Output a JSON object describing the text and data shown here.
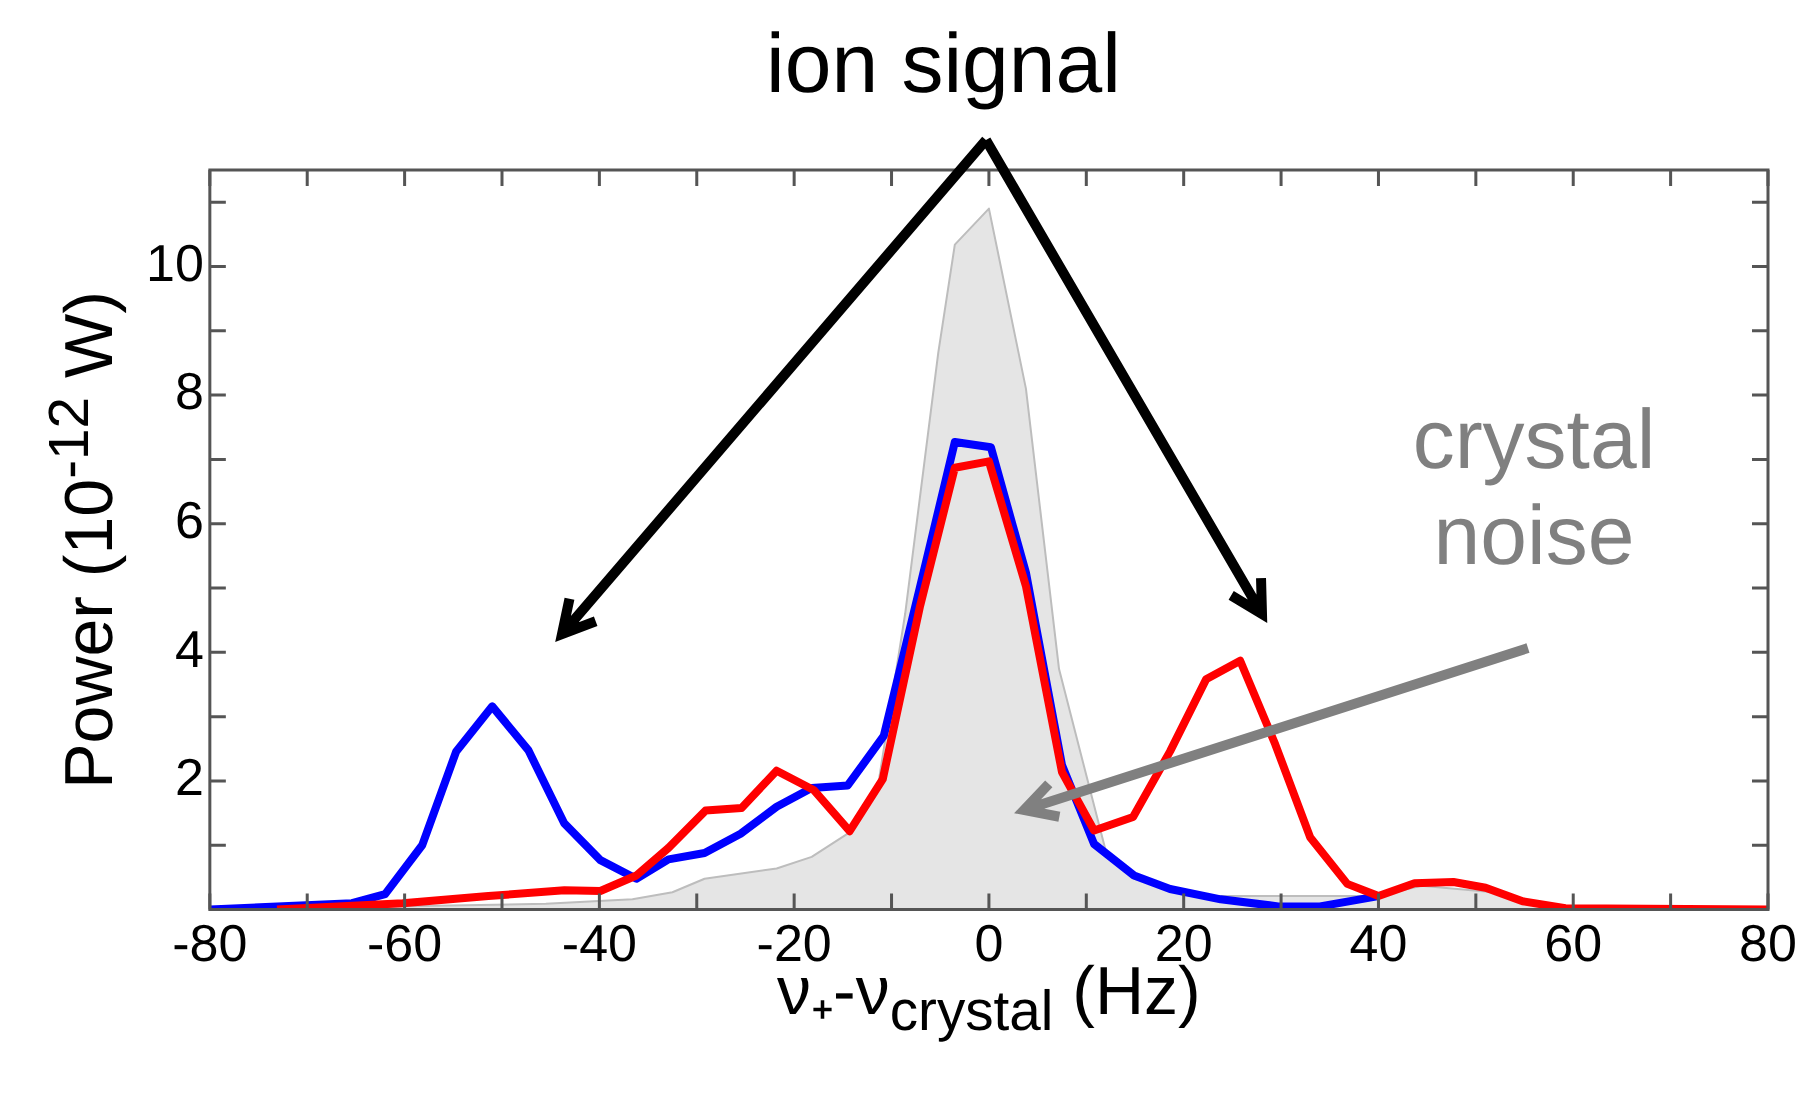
{
  "chart_data": {
    "type": "line",
    "xlabel": "ν₊-ν$_{crystal}$ (Hz)",
    "ylabel": "Power (10$^{-12}$ W)",
    "xlim": [
      -80,
      80
    ],
    "ylim": [
      0,
      11.5
    ],
    "xticks": [
      -80,
      {
        "value": -70,
        "label": null
      },
      -60,
      {
        "value": -50,
        "label": null
      },
      -40,
      {
        "value": -30,
        "label": null
      },
      -20,
      {
        "value": -10,
        "label": null
      },
      0,
      {
        "value": 10,
        "label": null
      },
      20,
      {
        "value": 30,
        "label": null
      },
      40,
      {
        "value": 50,
        "label": null
      },
      60,
      {
        "value": 70,
        "label": null
      },
      80
    ],
    "yticks": [
      {
        "value": 1,
        "label": null
      },
      2,
      {
        "value": 3,
        "label": null
      },
      4,
      {
        "value": 5,
        "label": null
      },
      6,
      {
        "value": 7,
        "label": null
      },
      8,
      {
        "value": 9,
        "label": null
      },
      10,
      {
        "value": 11,
        "label": null
      }
    ],
    "grid": false,
    "legend": false,
    "marker": "none",
    "line_style": "solid",
    "annotations": [
      "ion signal",
      "crystal noise"
    ],
    "series": [
      {
        "type": "area",
        "color": "#e5e5e5",
        "x": [
          -80,
          -45.5,
          -36.6,
          -32.5,
          -29.2,
          -21.8,
          -18.2,
          -14.5,
          -11.5,
          -8.6,
          -5.2,
          -3.5,
          0,
          3.8,
          7.2,
          10.1,
          12,
          14.9,
          22.3,
          40,
          44.4,
          51.8,
          59,
          80
        ],
        "values": [
          0,
          0.09,
          0.16,
          0.27,
          0.48,
          0.64,
          0.82,
          1.18,
          1.82,
          4.6,
          8.66,
          10.34,
          10.9,
          8.1,
          3.74,
          2.03,
          0.91,
          0.48,
          0.21,
          0.21,
          0.37,
          0.27,
          0.02,
          0
        ]
      },
      {
        "type": "line",
        "color": "#0000ff",
        "x": [
          -80,
          -65.4,
          -62,
          -58.2,
          -54.7,
          -51,
          -47.3,
          -43.6,
          -39.9,
          -36.2,
          -32.9,
          -29.2,
          -25.5,
          -21.8,
          -18.2,
          -14.5,
          -10.8,
          -7.1,
          -3.5,
          0.2,
          3.8,
          7.5,
          10.8,
          14.9,
          18.6,
          23.8,
          29.7,
          34,
          40
        ],
        "values": [
          0,
          0.1,
          0.24,
          1.0,
          2.46,
          3.16,
          2.48,
          1.34,
          0.77,
          0.48,
          0.78,
          0.88,
          1.18,
          1.6,
          1.89,
          1.93,
          2.7,
          5.0,
          7.27,
          7.19,
          5.24,
          2.25,
          1.02,
          0.53,
          0.32,
          0.16,
          0.05,
          0.05,
          0.21
        ]
      },
      {
        "type": "line",
        "color": "#ff0000",
        "x": [
          -73.1,
          -60.2,
          -51.4,
          -43.6,
          -39.9,
          -36.2,
          -32.9,
          -29.1,
          -25.4,
          -21.8,
          -18,
          -14.3,
          -10.9,
          -7.1,
          -3.5,
          0,
          3.8,
          7.5,
          10.8,
          14.8,
          18.6,
          22.3,
          25.8,
          29.4,
          33,
          36.8,
          40,
          43.7,
          47.7,
          51,
          54.8,
          59.2,
          80
        ],
        "values": [
          0,
          0.1,
          0.21,
          0.3,
          0.29,
          0.53,
          0.96,
          1.54,
          1.58,
          2.16,
          1.86,
          1.22,
          2.03,
          4.7,
          6.87,
          6.97,
          5.03,
          2.14,
          1.23,
          1.44,
          2.46,
          3.58,
          3.87,
          2.57,
          1.12,
          0.4,
          0.21,
          0.41,
          0.43,
          0.34,
          0.13,
          0.02,
          0
        ]
      }
    ]
  }
}
